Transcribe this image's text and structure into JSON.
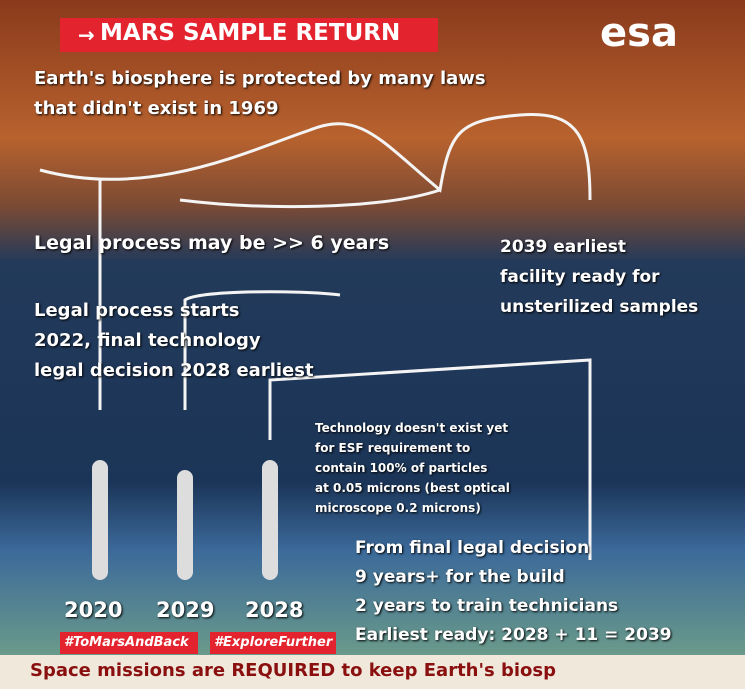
{
  "header": {
    "badge": "MARS SAMPLE RETURN",
    "logo": "esa"
  },
  "headline": [
    "Earth's biosphere is protected by many laws",
    "that didn't exist in 1969"
  ],
  "legal_duration": "Legal process may be >> 6 years",
  "facility": [
    "2039 earliest",
    "facility ready for",
    "unsterilized samples"
  ],
  "legal_start": [
    "Legal process starts",
    "2022, final technology",
    "legal decision 2028 earliest"
  ],
  "technology": [
    "Technology doesn't exist yet",
    "for ESF requirement to",
    "contain 100% of particles",
    "at 0.05 microns (best optical",
    "microscope 0.2 microns)"
  ],
  "timeline": [
    "From final legal decision",
    "9 years+ for the build",
    "2 years to train technicians",
    "Earliest ready: 2028 + 11 = 2039"
  ],
  "years": [
    "2020",
    "2029",
    "2028"
  ],
  "hashtags": [
    "#ToMarsAndBack",
    "#ExploreFurther"
  ],
  "footer": "Space missions are REQUIRED to keep Earth's biosp"
}
